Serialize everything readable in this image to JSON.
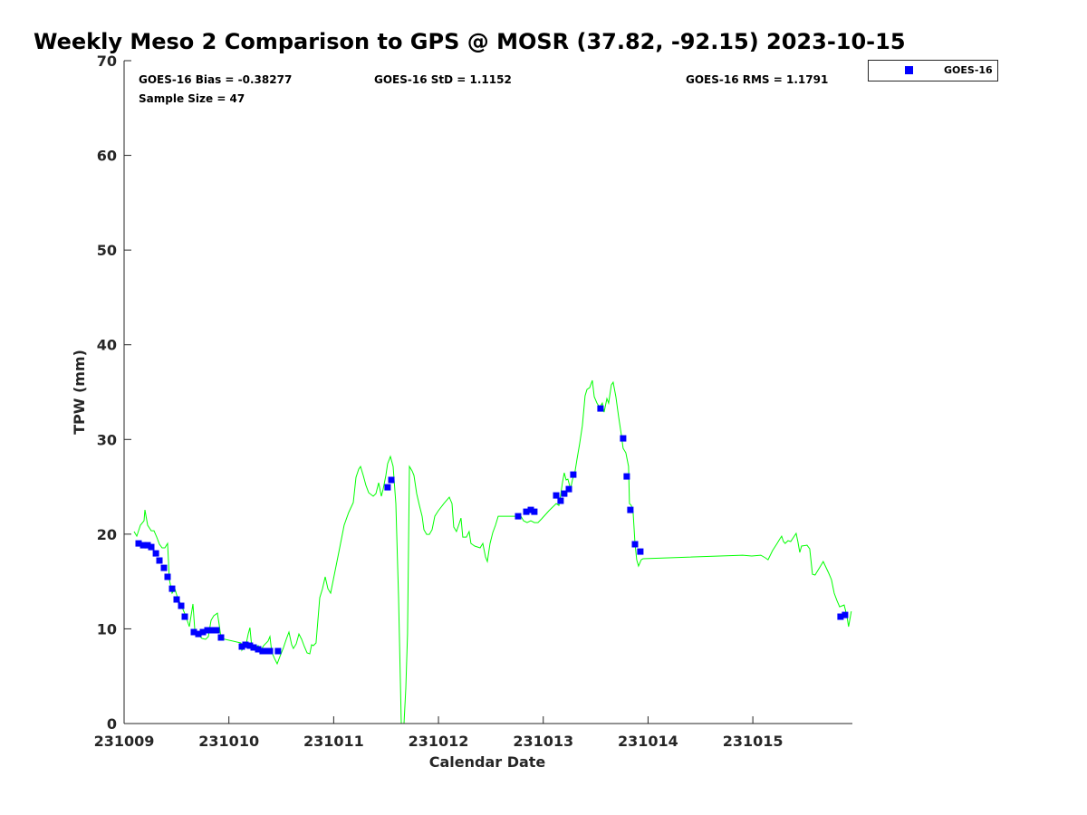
{
  "chart_data": {
    "type": "scatter",
    "title": "Weekly Meso 2 Comparison to GPS @ MOSR (37.82, -92.15) 2023-10-15",
    "xlabel": "Calendar Date",
    "ylabel": "TPW (mm)",
    "x_unit": "days since 231009",
    "xlim": [
      0,
      6.95
    ],
    "ylim": [
      0,
      70
    ],
    "grid": false,
    "xticks": [
      0,
      1,
      2,
      3,
      4,
      5,
      6
    ],
    "xtick_labels": [
      "231009",
      "231010",
      "231011",
      "231012",
      "231013",
      "231014",
      "231015"
    ],
    "yticks": [
      0,
      10,
      20,
      30,
      40,
      50,
      60,
      70
    ],
    "ytick_labels": [
      "0",
      "10",
      "20",
      "30",
      "40",
      "50",
      "60",
      "70"
    ],
    "stats": {
      "bias": "GOES-16 Bias = -0.38277",
      "std": "GOES-16 StD = 1.1152",
      "rms": "GOES-16 RMS = 1.1791",
      "sample": "Sample Size = 47"
    },
    "legend": {
      "placement": "outside-top-right",
      "entries": [
        "GOES-16"
      ]
    },
    "colors": {
      "goes": "#0000ff",
      "gps": "#00ff00"
    },
    "series": [
      {
        "name": "GPS",
        "style": "line",
        "points": [
          [
            0.095,
            20.27
          ],
          [
            0.121,
            19.79
          ],
          [
            0.156,
            20.94
          ],
          [
            0.19,
            21.41
          ],
          [
            0.199,
            22.56
          ],
          [
            0.225,
            20.94
          ],
          [
            0.259,
            20.36
          ],
          [
            0.285,
            20.36
          ],
          [
            0.311,
            19.69
          ],
          [
            0.337,
            18.93
          ],
          [
            0.363,
            18.55
          ],
          [
            0.389,
            18.55
          ],
          [
            0.415,
            19.02
          ],
          [
            0.432,
            15.2
          ],
          [
            0.458,
            13.77
          ],
          [
            0.484,
            14.24
          ],
          [
            0.51,
            13.29
          ],
          [
            0.545,
            12.52
          ],
          [
            0.588,
            11.38
          ],
          [
            0.622,
            10.23
          ],
          [
            0.657,
            12.62
          ],
          [
            0.674,
            9.94
          ],
          [
            0.7,
            9.46
          ],
          [
            0.743,
            8.99
          ],
          [
            0.778,
            8.89
          ],
          [
            0.804,
            9.18
          ],
          [
            0.83,
            10.9
          ],
          [
            0.856,
            11.38
          ],
          [
            0.89,
            11.66
          ],
          [
            0.908,
            10.42
          ],
          [
            0.925,
            8.99
          ],
          [
            1.115,
            8.51
          ],
          [
            1.124,
            7.74
          ],
          [
            1.15,
            8.22
          ],
          [
            1.167,
            8.51
          ],
          [
            1.184,
            9.46
          ],
          [
            1.201,
            10.13
          ],
          [
            1.219,
            8.03
          ],
          [
            1.253,
            8.03
          ],
          [
            1.279,
            8.22
          ],
          [
            1.305,
            7.74
          ],
          [
            1.331,
            8.22
          ],
          [
            1.374,
            8.7
          ],
          [
            1.392,
            9.18
          ],
          [
            1.409,
            7.55
          ],
          [
            1.435,
            6.88
          ],
          [
            1.461,
            6.31
          ],
          [
            1.487,
            7.07
          ],
          [
            1.521,
            8.03
          ],
          [
            1.547,
            8.89
          ],
          [
            1.573,
            9.66
          ],
          [
            1.599,
            8.32
          ],
          [
            1.616,
            7.93
          ],
          [
            1.642,
            8.41
          ],
          [
            1.668,
            9.46
          ],
          [
            1.694,
            8.89
          ],
          [
            1.72,
            8.13
          ],
          [
            1.746,
            7.46
          ],
          [
            1.772,
            7.36
          ],
          [
            1.789,
            8.32
          ],
          [
            1.806,
            8.22
          ],
          [
            1.832,
            8.51
          ],
          [
            1.867,
            13.29
          ],
          [
            1.893,
            14.24
          ],
          [
            1.919,
            15.49
          ],
          [
            1.945,
            14.24
          ],
          [
            1.971,
            13.77
          ],
          [
            2.014,
            16.16
          ],
          [
            2.057,
            18.55
          ],
          [
            2.1,
            20.94
          ],
          [
            2.143,
            22.28
          ],
          [
            2.187,
            23.33
          ],
          [
            2.213,
            26.0
          ],
          [
            2.239,
            26.86
          ],
          [
            2.256,
            27.15
          ],
          [
            2.282,
            26.2
          ],
          [
            2.308,
            25.14
          ],
          [
            2.334,
            24.38
          ],
          [
            2.377,
            24.0
          ],
          [
            2.403,
            24.28
          ],
          [
            2.429,
            25.43
          ],
          [
            2.455,
            24.0
          ],
          [
            2.472,
            24.76
          ],
          [
            2.498,
            26.2
          ],
          [
            2.515,
            27.44
          ],
          [
            2.541,
            28.2
          ],
          [
            2.567,
            27.15
          ],
          [
            2.593,
            23.23
          ],
          [
            2.619,
            13.29
          ],
          [
            2.645,
            0
          ],
          [
            2.671,
            0
          ],
          [
            2.688,
            3.73
          ],
          [
            2.705,
            9.46
          ],
          [
            2.723,
            27.15
          ],
          [
            2.749,
            26.67
          ],
          [
            2.766,
            26.2
          ],
          [
            2.792,
            24.28
          ],
          [
            2.818,
            23.04
          ],
          [
            2.844,
            21.89
          ],
          [
            2.861,
            20.46
          ],
          [
            2.887,
            19.98
          ],
          [
            2.913,
            19.98
          ],
          [
            2.939,
            20.46
          ],
          [
            2.965,
            21.89
          ],
          [
            2.999,
            22.47
          ],
          [
            3.051,
            23.23
          ],
          [
            3.103,
            23.9
          ],
          [
            3.129,
            23.23
          ],
          [
            3.146,
            20.75
          ],
          [
            3.172,
            20.27
          ],
          [
            3.198,
            21.13
          ],
          [
            3.215,
            21.7
          ],
          [
            3.232,
            19.69
          ],
          [
            3.267,
            19.69
          ],
          [
            3.293,
            20.27
          ],
          [
            3.31,
            19.02
          ],
          [
            3.345,
            18.74
          ],
          [
            3.397,
            18.55
          ],
          [
            3.423,
            19.02
          ],
          [
            3.449,
            17.59
          ],
          [
            3.466,
            17.11
          ],
          [
            3.492,
            19.02
          ],
          [
            3.518,
            20.17
          ],
          [
            3.544,
            20.94
          ],
          [
            3.57,
            21.89
          ],
          [
            3.742,
            21.89
          ],
          [
            3.777,
            22.08
          ],
          [
            3.812,
            21.41
          ],
          [
            3.846,
            21.22
          ],
          [
            3.881,
            21.41
          ],
          [
            3.915,
            21.22
          ],
          [
            3.95,
            21.22
          ],
          [
            3.984,
            21.61
          ],
          [
            4.054,
            22.47
          ],
          [
            4.123,
            23.23
          ],
          [
            4.149,
            23.04
          ],
          [
            4.166,
            24.09
          ],
          [
            4.183,
            25.43
          ],
          [
            4.2,
            26.48
          ],
          [
            4.218,
            25.72
          ],
          [
            4.235,
            25.81
          ],
          [
            4.261,
            24.76
          ],
          [
            4.278,
            25.72
          ],
          [
            4.304,
            26.67
          ],
          [
            4.322,
            27.92
          ],
          [
            4.347,
            29.54
          ],
          [
            4.373,
            31.45
          ],
          [
            4.399,
            34.61
          ],
          [
            4.417,
            35.28
          ],
          [
            4.443,
            35.47
          ],
          [
            4.468,
            36.23
          ],
          [
            4.486,
            34.51
          ],
          [
            4.512,
            33.84
          ],
          [
            4.538,
            33.37
          ],
          [
            4.563,
            33.84
          ],
          [
            4.581,
            32.89
          ],
          [
            4.607,
            34.32
          ],
          [
            4.624,
            33.84
          ],
          [
            4.65,
            35.76
          ],
          [
            4.667,
            36.04
          ],
          [
            4.693,
            34.51
          ],
          [
            4.719,
            32.41
          ],
          [
            4.745,
            30.5
          ],
          [
            4.762,
            29.06
          ],
          [
            4.788,
            28.59
          ],
          [
            4.814,
            27.15
          ],
          [
            4.823,
            23.23
          ],
          [
            4.84,
            23.04
          ],
          [
            4.857,
            22.37
          ],
          [
            4.875,
            19.02
          ],
          [
            4.892,
            17.3
          ],
          [
            4.909,
            16.63
          ],
          [
            4.935,
            17.3
          ],
          [
            4.952,
            17.4
          ],
          [
            5.903,
            17.78
          ],
          [
            5.99,
            17.69
          ],
          [
            6.076,
            17.78
          ],
          [
            6.119,
            17.5
          ],
          [
            6.145,
            17.3
          ],
          [
            6.188,
            18.26
          ],
          [
            6.232,
            19.02
          ],
          [
            6.258,
            19.5
          ],
          [
            6.275,
            19.79
          ],
          [
            6.292,
            19.22
          ],
          [
            6.309,
            19.02
          ],
          [
            6.335,
            19.31
          ],
          [
            6.361,
            19.22
          ],
          [
            6.413,
            20.08
          ],
          [
            6.43,
            19.22
          ],
          [
            6.448,
            18.07
          ],
          [
            6.465,
            18.74
          ],
          [
            6.517,
            18.83
          ],
          [
            6.543,
            18.45
          ],
          [
            6.569,
            15.77
          ],
          [
            6.594,
            15.68
          ],
          [
            6.646,
            16.63
          ],
          [
            6.672,
            17.11
          ],
          [
            6.724,
            15.87
          ],
          [
            6.75,
            15.2
          ],
          [
            6.776,
            13.77
          ],
          [
            6.802,
            13.0
          ],
          [
            6.828,
            12.33
          ],
          [
            6.871,
            12.52
          ],
          [
            6.897,
            11.38
          ],
          [
            6.914,
            10.23
          ],
          [
            6.94,
            11.85
          ]
        ]
      },
      {
        "name": "GOES-16",
        "style": "square-markers",
        "points": [
          [
            0.138,
            19.02
          ],
          [
            0.182,
            18.83
          ],
          [
            0.225,
            18.83
          ],
          [
            0.259,
            18.64
          ],
          [
            0.303,
            17.97
          ],
          [
            0.337,
            17.21
          ],
          [
            0.38,
            16.44
          ],
          [
            0.415,
            15.49
          ],
          [
            0.458,
            14.24
          ],
          [
            0.501,
            13.1
          ],
          [
            0.545,
            12.43
          ],
          [
            0.579,
            11.28
          ],
          [
            0.666,
            9.66
          ],
          [
            0.709,
            9.46
          ],
          [
            0.752,
            9.66
          ],
          [
            0.795,
            9.85
          ],
          [
            0.838,
            9.85
          ],
          [
            0.882,
            9.85
          ],
          [
            0.925,
            9.08
          ],
          [
            1.124,
            8.13
          ],
          [
            1.158,
            8.32
          ],
          [
            1.201,
            8.22
          ],
          [
            1.236,
            8.03
          ],
          [
            1.279,
            7.84
          ],
          [
            1.322,
            7.65
          ],
          [
            1.357,
            7.65
          ],
          [
            1.392,
            7.65
          ],
          [
            1.469,
            7.65
          ],
          [
            2.515,
            24.95
          ],
          [
            2.55,
            25.72
          ],
          [
            3.76,
            21.89
          ],
          [
            3.838,
            22.37
          ],
          [
            3.881,
            22.56
          ],
          [
            3.915,
            22.37
          ],
          [
            4.123,
            24.09
          ],
          [
            4.166,
            23.52
          ],
          [
            4.2,
            24.28
          ],
          [
            4.244,
            24.76
          ],
          [
            4.287,
            26.29
          ],
          [
            4.546,
            33.27
          ],
          [
            4.762,
            30.11
          ],
          [
            4.797,
            26.1
          ],
          [
            4.831,
            22.56
          ],
          [
            4.875,
            18.93
          ],
          [
            4.926,
            18.16
          ],
          [
            6.837,
            11.28
          ],
          [
            6.88,
            11.47
          ]
        ]
      }
    ]
  }
}
